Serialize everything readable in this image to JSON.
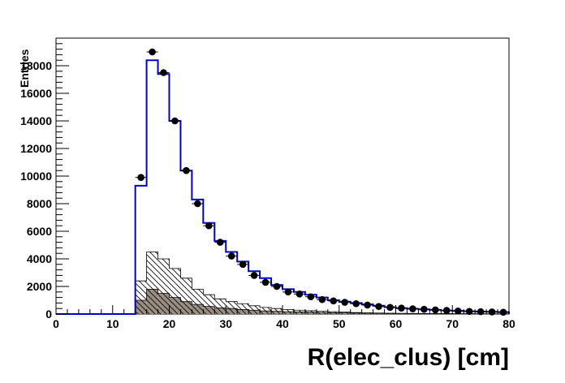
{
  "chart_data": {
    "type": "bar",
    "xlabel": "R(elec_clus) [cm]",
    "ylabel": "Entries",
    "xlim": [
      0,
      80
    ],
    "ylim": [
      0,
      20000
    ],
    "x_ticks": [
      0,
      10,
      20,
      30,
      40,
      50,
      60,
      70,
      80
    ],
    "y_ticks": [
      0,
      2000,
      4000,
      6000,
      8000,
      10000,
      12000,
      14000,
      16000,
      18000
    ],
    "bin_width": 2,
    "grid": false,
    "series": [
      {
        "kind": "step",
        "color": "#0000cc",
        "edges": [
          0,
          2,
          4,
          6,
          8,
          10,
          12,
          14,
          16,
          18,
          20,
          22,
          24,
          26,
          28,
          30,
          32,
          34,
          36,
          38,
          40,
          42,
          44,
          46,
          48,
          50,
          52,
          54,
          56,
          58,
          60,
          62,
          64,
          66,
          68,
          70,
          72,
          74,
          76,
          78,
          80
        ],
        "values": [
          0,
          0,
          0,
          0,
          0,
          0,
          0,
          9300,
          18400,
          17400,
          14000,
          10400,
          8300,
          6600,
          5300,
          4500,
          3800,
          3100,
          2600,
          2100,
          1800,
          1600,
          1400,
          1200,
          1000,
          900,
          800,
          700,
          600,
          500,
          430,
          380,
          340,
          300,
          260,
          230,
          200,
          180,
          160,
          140
        ]
      },
      {
        "kind": "hatched",
        "color": "#000000",
        "edges": [
          0,
          2,
          4,
          6,
          8,
          10,
          12,
          14,
          16,
          18,
          20,
          22,
          24,
          26,
          28,
          30,
          32,
          34,
          36,
          38,
          40,
          42,
          44,
          46,
          48,
          50,
          52,
          54,
          56,
          58,
          60,
          62,
          64,
          66,
          68,
          70,
          72,
          74,
          76,
          78,
          80
        ],
        "values": [
          0,
          0,
          0,
          0,
          0,
          0,
          0,
          2400,
          4500,
          4000,
          3300,
          2600,
          1800,
          1400,
          1100,
          900,
          750,
          600,
          480,
          400,
          330,
          280,
          240,
          200,
          170,
          140,
          110,
          90,
          75,
          60,
          50,
          40,
          35,
          30,
          25,
          20,
          18,
          15,
          12,
          10
        ]
      },
      {
        "kind": "filled",
        "color": "#9a8e82",
        "edges": [
          0,
          2,
          4,
          6,
          8,
          10,
          12,
          14,
          16,
          18,
          20,
          22,
          24,
          26,
          28,
          30,
          32,
          34,
          36,
          38,
          40,
          42,
          44,
          46,
          48,
          50,
          52,
          54,
          56,
          58,
          60,
          62,
          64,
          66,
          68,
          70,
          72,
          74,
          76,
          78,
          80
        ],
        "values": [
          0,
          0,
          0,
          0,
          0,
          0,
          0,
          1000,
          1800,
          1500,
          1200,
          900,
          700,
          550,
          450,
          400,
          330,
          280,
          230,
          200,
          170,
          150,
          130,
          110,
          95,
          80,
          70,
          60,
          50,
          40,
          35,
          30,
          25,
          20,
          18,
          15,
          12,
          10,
          8,
          6
        ]
      },
      {
        "kind": "points",
        "color": "#000000",
        "x": [
          15,
          17,
          19,
          21,
          23,
          25,
          27,
          29,
          31,
          33,
          35,
          37,
          39,
          41,
          43,
          45,
          47,
          49,
          51,
          53,
          55,
          57,
          59,
          61,
          63,
          65,
          67,
          69,
          71,
          73,
          75,
          77,
          79
        ],
        "y": [
          9900,
          19000,
          17500,
          14000,
          10400,
          8000,
          6400,
          5200,
          4200,
          3600,
          2800,
          2300,
          2000,
          1600,
          1450,
          1250,
          1050,
          950,
          850,
          750,
          650,
          550,
          480,
          430,
          380,
          340,
          300,
          260,
          220,
          190,
          170,
          150,
          130
        ]
      }
    ]
  }
}
